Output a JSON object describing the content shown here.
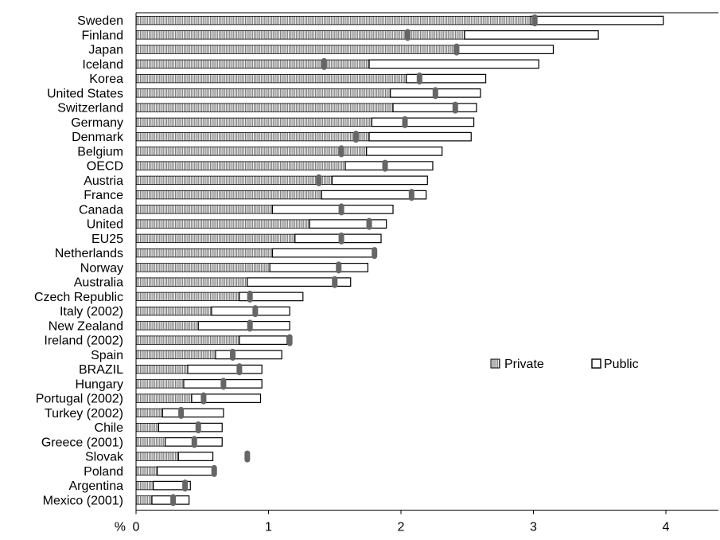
{
  "chart_data": {
    "type": "bar",
    "stacked": true,
    "orientation": "horizontal",
    "categories": [
      "Sweden",
      "Finland",
      "Japan",
      "Iceland",
      "Korea",
      "United States",
      "Switzerland",
      "Germany",
      "Denmark",
      "Belgium",
      "OECD",
      "Austria",
      "France",
      "Canada",
      "United",
      "EU25",
      "Netherlands",
      "Norway",
      "Australia",
      "Czech Republic",
      "Italy (2002)",
      "New Zealand",
      "Ireland (2002)",
      "Spain",
      "BRAZIL",
      "Hungary",
      "Portugal (2002)",
      "Turkey (2002)",
      "Chile",
      "Greece (2001)",
      "Slovak",
      "Poland",
      "Argentina",
      "Mexico (2001)"
    ],
    "series": [
      {
        "name": "Private",
        "color": "#808080",
        "pattern": "vertical-stripes",
        "values": [
          2.98,
          2.48,
          2.42,
          1.76,
          2.04,
          1.92,
          1.94,
          1.78,
          1.76,
          1.74,
          1.58,
          1.48,
          1.4,
          1.03,
          1.31,
          1.2,
          1.03,
          1.01,
          0.84,
          0.78,
          0.57,
          0.47,
          0.78,
          0.6,
          0.39,
          0.36,
          0.42,
          0.2,
          0.17,
          0.22,
          0.32,
          0.16,
          0.13,
          0.12
        ]
      },
      {
        "name": "Public",
        "color": "#ffffff",
        "values": [
          1.0,
          1.01,
          0.73,
          1.28,
          0.6,
          0.68,
          0.63,
          0.77,
          0.77,
          0.57,
          0.66,
          0.72,
          0.79,
          0.91,
          0.58,
          0.65,
          0.76,
          0.74,
          0.78,
          0.48,
          0.59,
          0.69,
          0.36,
          0.5,
          0.56,
          0.59,
          0.52,
          0.46,
          0.48,
          0.43,
          0.26,
          0.42,
          0.28,
          0.28
        ]
      }
    ],
    "markers": [
      3.01,
      2.05,
      2.42,
      1.42,
      2.14,
      2.26,
      2.41,
      2.03,
      1.66,
      1.55,
      1.88,
      1.38,
      2.08,
      1.55,
      1.76,
      1.55,
      1.8,
      1.53,
      1.5,
      0.86,
      0.9,
      0.86,
      1.16,
      0.73,
      0.78,
      0.66,
      0.51,
      0.34,
      0.47,
      0.44,
      0.84,
      0.59,
      0.37,
      0.28
    ],
    "xlabel": "%",
    "xticks": [
      0,
      1,
      2,
      3,
      4
    ],
    "xlim": [
      0,
      4.4
    ],
    "legend": {
      "position": "right-middle",
      "entries": [
        "Private",
        "Public"
      ]
    },
    "grid": false
  }
}
